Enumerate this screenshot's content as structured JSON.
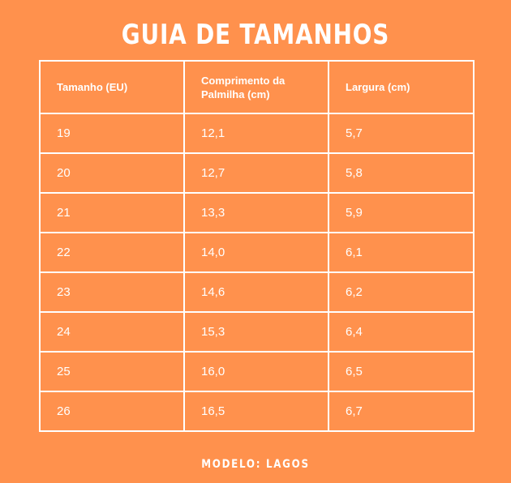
{
  "title": "GUIA DE TAMANHOS",
  "table": {
    "headers": [
      "Tamanho (EU)",
      "Comprimento da Palmilha (cm)",
      "Largura (cm)"
    ],
    "rows": [
      [
        "19",
        "12,1",
        "5,7"
      ],
      [
        "20",
        "12,7",
        "5,8"
      ],
      [
        "21",
        "13,3",
        "5,9"
      ],
      [
        "22",
        "14,0",
        "6,1"
      ],
      [
        "23",
        "14,6",
        "6,2"
      ],
      [
        "24",
        "15,3",
        "6,4"
      ],
      [
        "25",
        "16,0",
        "6,5"
      ],
      [
        "26",
        "16,5",
        "6,7"
      ]
    ]
  },
  "footer": "MODELO: LAGOS",
  "colors": {
    "background": "#FF914D",
    "text": "#FFFFFF",
    "border": "#FFFFFF"
  }
}
